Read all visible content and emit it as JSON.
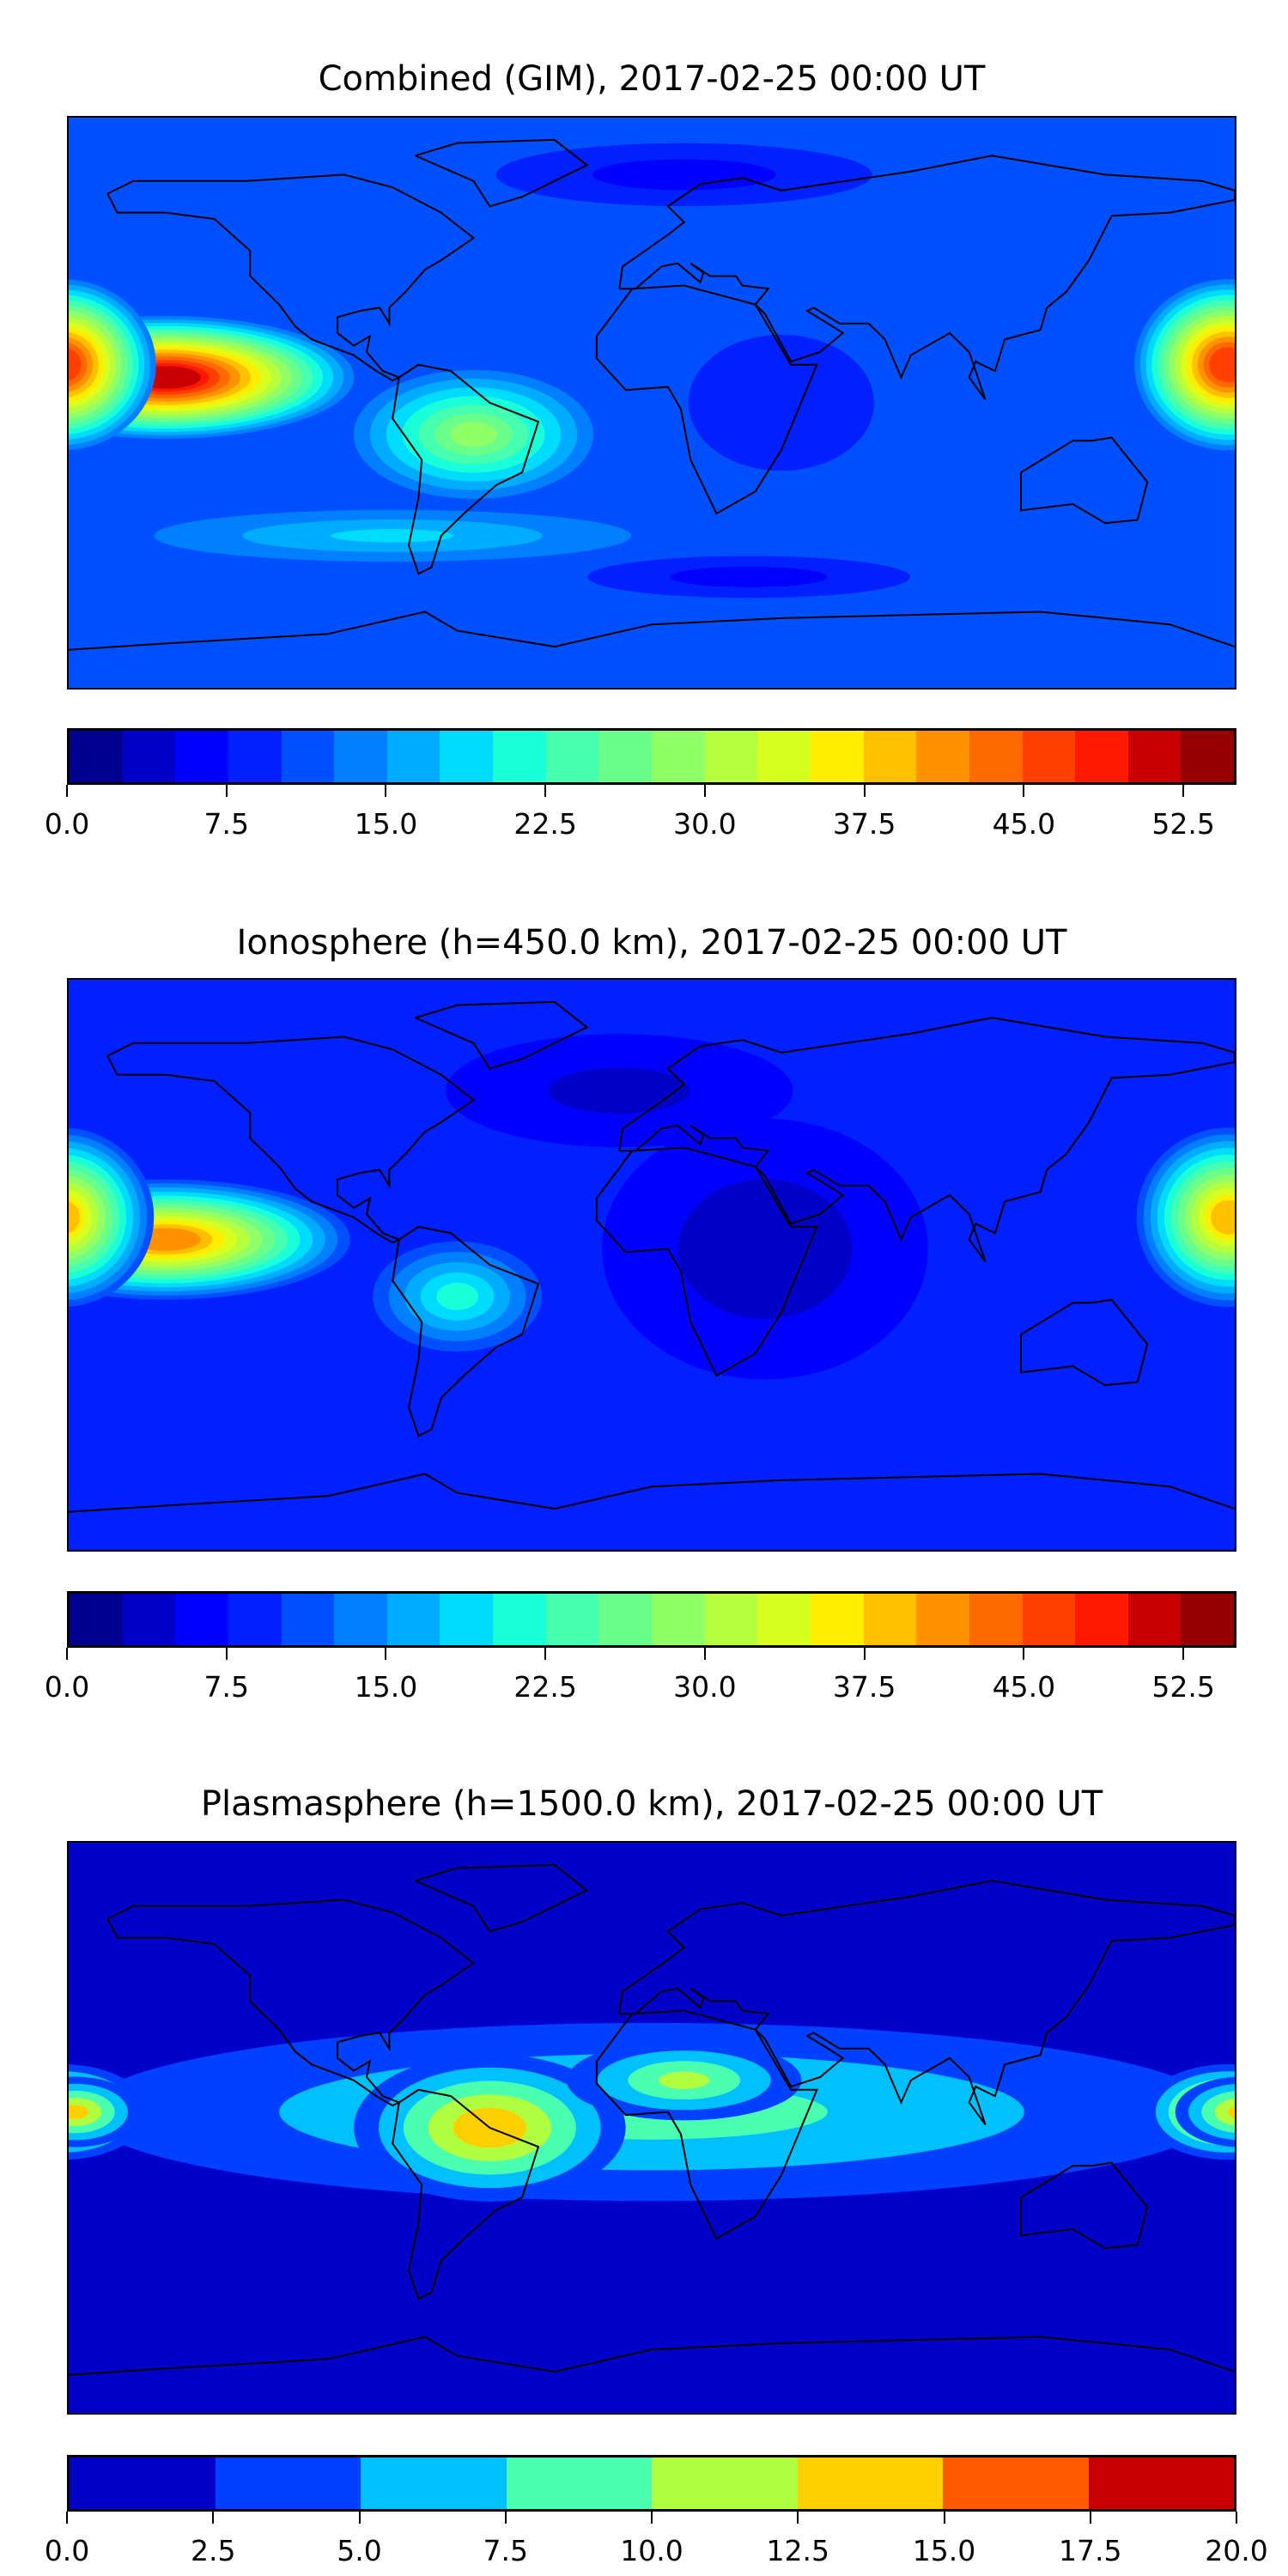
{
  "chart_data": [
    {
      "type": "heatmap",
      "title": "Combined (GIM), 2017-02-25 00:00 UT",
      "xlim": [
        -180,
        180
      ],
      "ylim": [
        -90,
        90
      ],
      "levels_min": 0.0,
      "levels_max": 55.0,
      "level_step": 2.5,
      "colorbar_ticks": [
        "0.0",
        "7.5",
        "15.0",
        "22.5",
        "30.0",
        "37.5",
        "45.0",
        "52.5"
      ],
      "colorbar_tick_values": [
        0,
        7.5,
        15,
        22.5,
        30,
        37.5,
        45,
        52.5
      ],
      "colors": [
        "#00008f",
        "#0000c8",
        "#0000ff",
        "#0020ff",
        "#0050ff",
        "#0080ff",
        "#00acff",
        "#00dcff",
        "#1affd9",
        "#46ffb0",
        "#6aff8a",
        "#90ff68",
        "#b5ff3f",
        "#d8ff20",
        "#ffee00",
        "#ffc000",
        "#ff9200",
        "#ff6a00",
        "#ff4000",
        "#ff1800",
        "#c80000",
        "#960000"
      ],
      "base_value": 11,
      "features": [
        {
          "lon": -80,
          "lat": -42,
          "value": 18,
          "rx": 90,
          "ry": 10
        },
        {
          "lon": -55,
          "lat": -10,
          "value": 28,
          "rx": 40,
          "ry": 22
        },
        {
          "lon": -150,
          "lat": 8,
          "value": 51,
          "rx": 60,
          "ry": 20
        },
        {
          "lon": 178,
          "lat": 12,
          "value": 47,
          "rx": 30,
          "ry": 28
        },
        {
          "lon": 10,
          "lat": 72,
          "value": 6,
          "rx": 70,
          "ry": 12
        },
        {
          "lon": 30,
          "lat": -55,
          "value": 6,
          "rx": 60,
          "ry": 8
        },
        {
          "lon": 40,
          "lat": 0,
          "value": 8,
          "rx": 40,
          "ry": 30
        }
      ]
    },
    {
      "type": "heatmap",
      "title": "Ionosphere  (h=450.0 km), 2017-02-25 00:00 UT",
      "xlim": [
        -180,
        180
      ],
      "ylim": [
        -90,
        90
      ],
      "levels_min": 0.0,
      "levels_max": 55.0,
      "level_step": 2.5,
      "colorbar_ticks": [
        "0.0",
        "7.5",
        "15.0",
        "22.5",
        "30.0",
        "37.5",
        "45.0",
        "52.5"
      ],
      "colorbar_tick_values": [
        0,
        7.5,
        15,
        22.5,
        30,
        37.5,
        45,
        52.5
      ],
      "colors": [
        "#00008f",
        "#0000c8",
        "#0000ff",
        "#0020ff",
        "#0050ff",
        "#0080ff",
        "#00acff",
        "#00dcff",
        "#1affd9",
        "#46ffb0",
        "#6aff8a",
        "#90ff68",
        "#b5ff3f",
        "#d8ff20",
        "#ffee00",
        "#ffc000",
        "#ff9200",
        "#ff6a00",
        "#ff4000",
        "#ff1800",
        "#c80000",
        "#960000"
      ],
      "base_value": 8,
      "features": [
        {
          "lon": 35,
          "lat": 5,
          "value": 3,
          "rx": 55,
          "ry": 45
        },
        {
          "lon": -10,
          "lat": 55,
          "value": 4,
          "rx": 60,
          "ry": 20
        },
        {
          "lon": -60,
          "lat": -10,
          "value": 21,
          "rx": 30,
          "ry": 20
        },
        {
          "lon": -150,
          "lat": 8,
          "value": 41,
          "rx": 60,
          "ry": 20
        },
        {
          "lon": 178,
          "lat": 15,
          "value": 38,
          "rx": 30,
          "ry": 30
        }
      ]
    },
    {
      "type": "heatmap",
      "title": "Plasmasphere (h=1500.0 km), 2017-02-25 00:00 UT",
      "xlim": [
        -180,
        180
      ],
      "ylim": [
        -90,
        90
      ],
      "levels_min": 0.0,
      "levels_max": 20.0,
      "level_step": 2.5,
      "colorbar_ticks": [
        "0.0",
        "2.5",
        "5.0",
        "7.5",
        "10.0",
        "12.5",
        "15.0",
        "17.5",
        "20.0"
      ],
      "colorbar_tick_values": [
        0,
        2.5,
        5,
        7.5,
        10,
        12.5,
        15,
        17.5,
        20
      ],
      "colors": [
        "#0000c8",
        "#0040ff",
        "#00c0ff",
        "#4affb0",
        "#b0ff40",
        "#ffd000",
        "#ff5a00",
        "#c80000"
      ],
      "base_value": 1.5,
      "features": [
        {
          "lon": 0,
          "lat": 5,
          "value": 8.5,
          "rx": 200,
          "ry": 32
        },
        {
          "lon": -50,
          "lat": 0,
          "value": 14,
          "rx": 45,
          "ry": 25
        },
        {
          "lon": 10,
          "lat": 15,
          "value": 10.5,
          "rx": 40,
          "ry": 14
        },
        {
          "lon": 178,
          "lat": 5,
          "value": 16.5,
          "rx": 28,
          "ry": 16
        },
        {
          "lon": -178,
          "lat": 5,
          "value": 13,
          "rx": 22,
          "ry": 12
        }
      ]
    }
  ]
}
